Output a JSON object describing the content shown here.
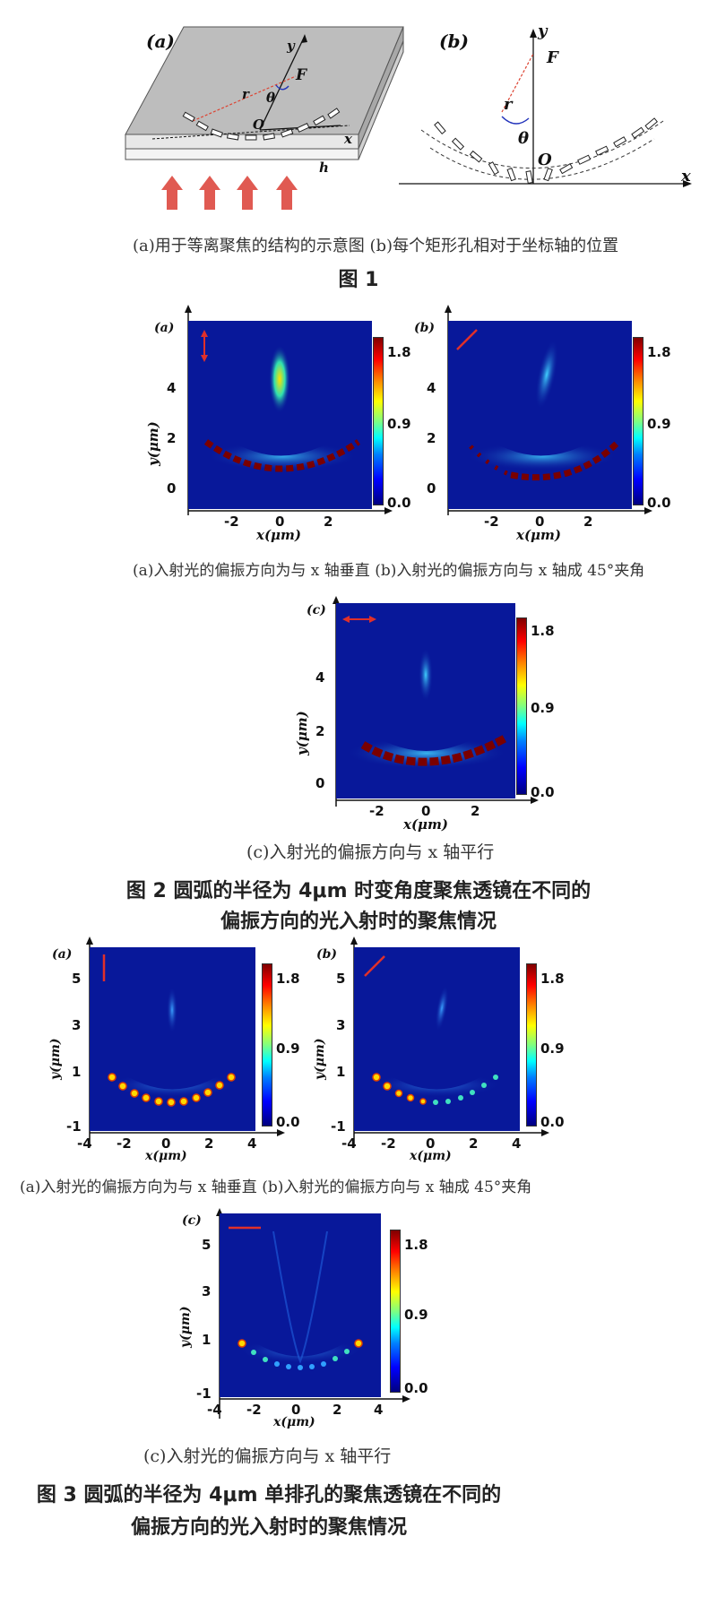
{
  "fig1": {
    "panel_a": {
      "label": "(a)",
      "y": "y",
      "F": "F",
      "r": "r",
      "theta": "θ",
      "O": "O",
      "x": "x",
      "h": "h"
    },
    "panel_b": {
      "label": "(b)",
      "y": "y",
      "F": "F",
      "r": "r",
      "theta": "θ",
      "O": "O",
      "x": "x"
    },
    "sub_caption": "(a)用于等离聚焦的结构的示意图 (b)每个矩形孔相对于坐标轴的位置",
    "title": "图 1"
  },
  "fig2": {
    "a": {
      "label": "(a)",
      "yticks": [
        "4",
        "2",
        "0"
      ],
      "xticks": [
        "-2",
        "0",
        "2"
      ],
      "cbar_ticks": [
        "1.8",
        "0.9",
        "0.0"
      ],
      "xlabel": "x(μm)",
      "ylabel": "y(μm)"
    },
    "b": {
      "label": "(b)",
      "yticks": [
        "4",
        "2",
        "0"
      ],
      "xticks": [
        "-2",
        "0",
        "2"
      ],
      "cbar_ticks": [
        "1.8",
        "0.9",
        "0.0"
      ],
      "xlabel": "x(μm)",
      "ylabel": "y(μm)"
    },
    "c": {
      "label": "(c)",
      "yticks": [
        "4",
        "2",
        "0"
      ],
      "xticks": [
        "-2",
        "0",
        "2"
      ],
      "cbar_ticks": [
        "1.8",
        "0.9",
        "0.0"
      ],
      "xlabel": "x(μm)",
      "ylabel": "y(μm)"
    },
    "cap_ab": "(a)入射光的偏振方向为与 x 轴垂直  (b)入射光的偏振方向与 x 轴成 45°夹角",
    "cap_c": "(c)入射光的偏振方向与 x 轴平行",
    "title_line1": "图 2   圆弧的半径为 4μm 时变角度聚焦透镜在不同的",
    "title_line2": "偏振方向的光入射时的聚焦情况"
  },
  "fig3": {
    "a": {
      "label": "(a)",
      "yticks": [
        "5",
        "3",
        "1",
        "-1"
      ],
      "xticks": [
        "-4",
        "-2",
        "0",
        "2",
        "4"
      ],
      "cbar_ticks": [
        "1.8",
        "0.9",
        "0.0"
      ],
      "xlabel": "x(μm)",
      "ylabel": "y(μm)"
    },
    "b": {
      "label": "(b)",
      "yticks": [
        "5",
        "3",
        "1",
        "-1"
      ],
      "xticks": [
        "-4",
        "-2",
        "0",
        "2",
        "4"
      ],
      "cbar_ticks": [
        "1.8",
        "0.9",
        "0.0"
      ],
      "xlabel": "x(μm)",
      "ylabel": "y(μm)"
    },
    "c": {
      "label": "(c)",
      "yticks": [
        "5",
        "3",
        "1",
        "-1"
      ],
      "xticks": [
        "-4",
        "-2",
        "0",
        "2",
        "4"
      ],
      "cbar_ticks": [
        "1.8",
        "0.9",
        "0.0"
      ],
      "xlabel": "x(μm)",
      "ylabel": "y(μm)"
    },
    "cap_ab": "(a)入射光的偏振方向为与 x 轴垂直   (b)入射光的偏振方向与 x 轴成 45°夹角",
    "cap_c": "(c)入射光的偏振方向与 x 轴平行",
    "title_line1": "图 3  圆弧的半径为 4μm 单排孔的聚焦透镜在不同的",
    "title_line2": "偏振方向的光入射时的聚焦情况"
  },
  "colors": {
    "field_bg": "#08189a",
    "arrow": "#e0302a",
    "red_arrow_fill": "#e05a52"
  }
}
